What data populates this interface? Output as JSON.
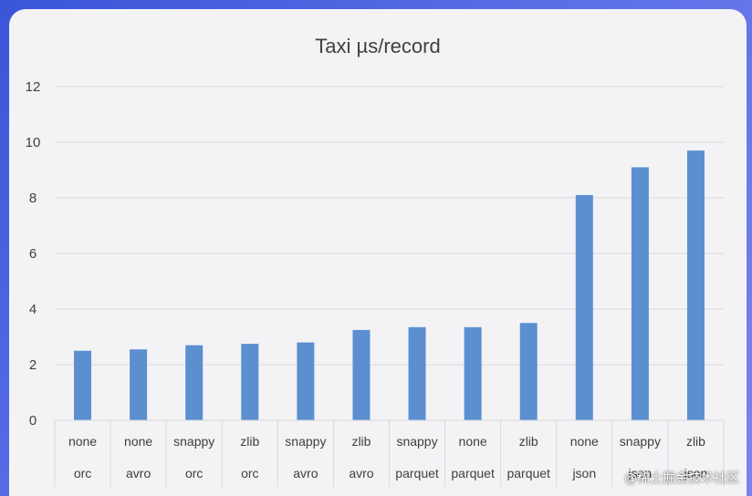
{
  "chart_data": {
    "type": "bar",
    "title": "Taxi µs/record",
    "xlabel": "",
    "ylabel": "",
    "ylim": [
      0,
      12
    ],
    "yticks": [
      0,
      2,
      4,
      6,
      8,
      10,
      12
    ],
    "grid": true,
    "categories": [
      [
        "none",
        "orc"
      ],
      [
        "none",
        "avro"
      ],
      [
        "snappy",
        "orc"
      ],
      [
        "zlib",
        "orc"
      ],
      [
        "snappy",
        "avro"
      ],
      [
        "zlib",
        "avro"
      ],
      [
        "snappy",
        "parquet"
      ],
      [
        "none",
        "parquet"
      ],
      [
        "zlib",
        "parquet"
      ],
      [
        "none",
        "json"
      ],
      [
        "snappy",
        "json"
      ],
      [
        "zlib",
        "json"
      ]
    ],
    "values": [
      2.5,
      2.55,
      2.7,
      2.75,
      2.8,
      3.25,
      3.35,
      3.35,
      3.5,
      8.1,
      9.1,
      9.7
    ],
    "bar_color": "#5b8fd0",
    "grid_color": "#d9d9d9"
  },
  "watermark": "@稀土掘金技术社区"
}
